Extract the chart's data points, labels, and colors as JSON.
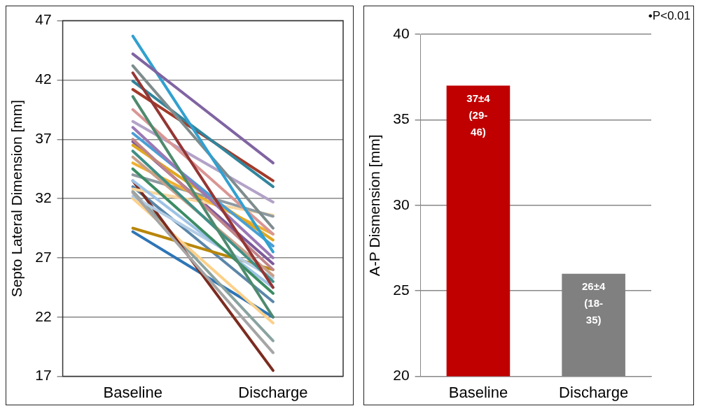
{
  "chart_data": [
    {
      "type": "line",
      "ylabel": "Septo Lateral Dimension [mm]",
      "categories": [
        "Baseline",
        "Discharge"
      ],
      "ylim": [
        17,
        47
      ],
      "yticks": [
        17,
        22,
        27,
        32,
        37,
        42,
        47
      ],
      "grid": "y",
      "marker": "none",
      "legend": false,
      "series": [
        {
          "color": "#8064a2",
          "values": [
            44.2,
            35.0
          ]
        },
        {
          "color": "#31a0d0",
          "values": [
            45.7,
            27.5
          ]
        },
        {
          "color": "#7f8c8d",
          "values": [
            43.2,
            29.5
          ]
        },
        {
          "color": "#943634",
          "values": [
            42.6,
            24.5
          ]
        },
        {
          "color": "#31859c",
          "values": [
            41.9,
            33.0
          ]
        },
        {
          "color": "#a33a2a",
          "values": [
            41.2,
            33.5
          ]
        },
        {
          "color": "#4f8a6e",
          "values": [
            40.6,
            22.0
          ]
        },
        {
          "color": "#d99694",
          "values": [
            39.5,
            29.0
          ]
        },
        {
          "color": "#b3a2c7",
          "values": [
            38.5,
            31.7
          ]
        },
        {
          "color": "#9b78b5",
          "values": [
            38.0,
            27.0
          ]
        },
        {
          "color": "#4a9fd5",
          "values": [
            37.5,
            28.0
          ]
        },
        {
          "color": "#c0848a",
          "values": [
            37.0,
            26.0
          ]
        },
        {
          "color": "#e0a820",
          "values": [
            36.5,
            28.5
          ]
        },
        {
          "color": "#3f8f86",
          "values": [
            36.0,
            25.0
          ]
        },
        {
          "color": "#c9a08a",
          "values": [
            35.5,
            25.5
          ]
        },
        {
          "color": "#f0b030",
          "values": [
            35.0,
            29.0
          ]
        },
        {
          "color": "#3c8c64",
          "values": [
            34.5,
            24.0
          ]
        },
        {
          "color": "#8e9aa2",
          "values": [
            34.0,
            30.5
          ]
        },
        {
          "color": "#9dc3e6",
          "values": [
            33.5,
            24.5
          ]
        },
        {
          "color": "#fad7a0",
          "values": [
            32.8,
            30.6
          ]
        },
        {
          "color": "#a5a5a5",
          "values": [
            32.5,
            19.0
          ]
        },
        {
          "color": "#b4cde6",
          "values": [
            32.2,
            25.3
          ]
        },
        {
          "color": "#7b2c20",
          "values": [
            33.5,
            17.5
          ]
        },
        {
          "color": "#fcd08a",
          "values": [
            32.0,
            21.5
          ]
        },
        {
          "color": "#8aa3a0",
          "values": [
            32.6,
            20.0
          ]
        },
        {
          "color": "#b8860b",
          "values": [
            29.5,
            26.0
          ]
        },
        {
          "color": "#2e75b6",
          "values": [
            29.2,
            22.0
          ]
        },
        {
          "color": "#5b86a8",
          "values": [
            33.0,
            23.3
          ]
        },
        {
          "color": "#7d5a9a",
          "values": [
            36.8,
            26.5
          ]
        }
      ]
    },
    {
      "type": "bar",
      "ylabel": "A-P Dismension [mm]",
      "categories": [
        "Baseline",
        "Discharge"
      ],
      "values": [
        37,
        26
      ],
      "colors": [
        "#c00000",
        "#808080"
      ],
      "value_labels": [
        "37±4 (29-46)",
        "26±4 (18-35)"
      ],
      "ylim": [
        20,
        40
      ],
      "yticks": [
        20,
        25,
        30,
        35,
        40
      ],
      "grid": "y",
      "legend": false,
      "annotations": [
        "•P<0.01"
      ]
    }
  ]
}
